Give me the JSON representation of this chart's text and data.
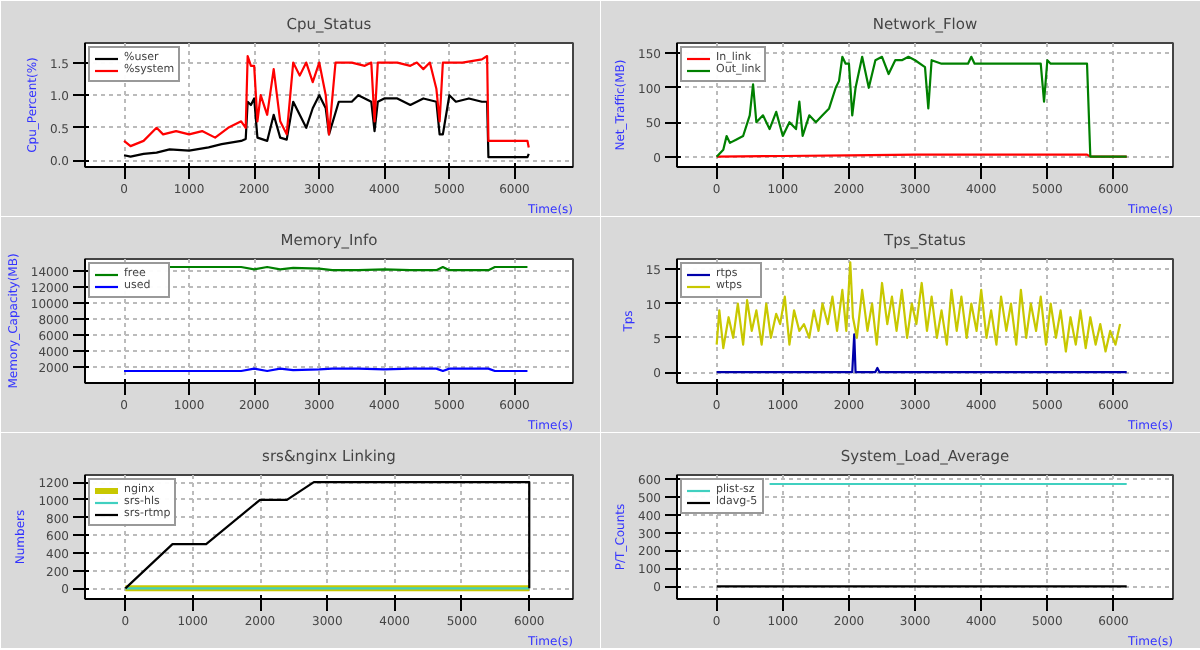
{
  "chart_data": [
    {
      "type": "line",
      "title": "Cpu_Status",
      "xlabel": "Time(s)",
      "ylabel": "Cpu_Percent(%)",
      "xlim": [
        -600,
        6900
      ],
      "ylim": [
        -0.1,
        1.8
      ],
      "xticks": [
        0,
        1000,
        2000,
        3000,
        4000,
        5000,
        6000
      ],
      "yticks": [
        {
          "value": 0,
          "label": "0.0"
        },
        0.5,
        {
          "value": 1,
          "label": "1.0"
        },
        1.5
      ],
      "grid": true,
      "legend": "top left",
      "series": [
        {
          "name": "%user",
          "color": "#000000",
          "x": [
            0,
            100,
            300,
            500,
            700,
            1000,
            1300,
            1500,
            1800,
            1870,
            1900,
            1950,
            2000,
            2050,
            2200,
            2300,
            2400,
            2500,
            2600,
            2700,
            2800,
            2900,
            3000,
            3100,
            3150,
            3300,
            3500,
            3600,
            3800,
            3850,
            3900,
            4000,
            4200,
            4400,
            4600,
            4800,
            4850,
            4900,
            5000,
            5100,
            5300,
            5500,
            5580,
            5600,
            6200,
            6220
          ],
          "values": [
            0.08,
            0.06,
            0.1,
            0.12,
            0.17,
            0.15,
            0.2,
            0.25,
            0.3,
            0.33,
            0.9,
            0.85,
            0.95,
            0.35,
            0.3,
            0.7,
            0.35,
            0.32,
            0.9,
            0.7,
            0.5,
            0.8,
            1.0,
            0.8,
            0.4,
            0.9,
            0.9,
            1.0,
            0.9,
            0.45,
            0.9,
            0.95,
            0.95,
            0.85,
            0.95,
            0.9,
            0.4,
            0.4,
            1.0,
            0.9,
            0.95,
            0.9,
            0.9,
            0.05,
            0.05,
            0.1
          ]
        },
        {
          "name": "%system",
          "color": "#ff0000",
          "x": [
            0,
            100,
            300,
            500,
            600,
            800,
            1000,
            1200,
            1400,
            1600,
            1800,
            1870,
            1900,
            1950,
            2000,
            2050,
            2100,
            2200,
            2300,
            2400,
            2500,
            2600,
            2700,
            2800,
            2900,
            3000,
            3100,
            3150,
            3250,
            3500,
            3700,
            3800,
            3850,
            3900,
            4200,
            4400,
            4500,
            4600,
            4700,
            4800,
            4850,
            4900,
            5200,
            5500,
            5580,
            5600,
            6200,
            6220
          ],
          "values": [
            0.3,
            0.22,
            0.3,
            0.5,
            0.4,
            0.45,
            0.4,
            0.45,
            0.35,
            0.5,
            0.6,
            0.5,
            1.6,
            1.45,
            1.45,
            0.6,
            1.0,
            0.7,
            1.4,
            0.6,
            0.4,
            1.5,
            1.3,
            1.5,
            1.2,
            1.5,
            1.0,
            0.4,
            1.5,
            1.5,
            1.45,
            1.5,
            0.6,
            1.5,
            1.5,
            1.45,
            1.5,
            1.4,
            1.5,
            1.1,
            0.6,
            1.5,
            1.5,
            1.55,
            1.6,
            0.3,
            0.3,
            0.2
          ]
        }
      ]
    },
    {
      "type": "line",
      "title": "Network_Flow",
      "xlabel": "Time(s)",
      "ylabel": "Net_Traffic(MB)",
      "xlim": [
        -600,
        6900
      ],
      "ylim": [
        -15,
        165
      ],
      "xticks": [
        0,
        1000,
        2000,
        3000,
        4000,
        5000,
        6000
      ],
      "yticks": [
        0,
        50,
        100,
        150
      ],
      "grid": true,
      "legend": "top left",
      "series": [
        {
          "name": "In_link",
          "color": "#ff0000",
          "x": [
            0,
            1000,
            2000,
            3000,
            4000,
            5000,
            5600,
            5650,
            6200
          ],
          "values": [
            0,
            1,
            2,
            3,
            3,
            3,
            3,
            0,
            0
          ]
        },
        {
          "name": "Out_link",
          "color": "#008000",
          "x": [
            0,
            100,
            150,
            200,
            300,
            400,
            500,
            550,
            600,
            700,
            800,
            900,
            1000,
            1100,
            1200,
            1250,
            1300,
            1400,
            1500,
            1600,
            1700,
            1800,
            1850,
            1900,
            1950,
            2000,
            2050,
            2100,
            2200,
            2300,
            2400,
            2500,
            2600,
            2700,
            2800,
            2900,
            3000,
            3150,
            3200,
            3250,
            3400,
            3600,
            3800,
            3850,
            3900,
            4200,
            4400,
            4700,
            4900,
            4950,
            5000,
            5050,
            5300,
            5600,
            5650,
            6200
          ],
          "values": [
            0,
            10,
            30,
            20,
            25,
            30,
            60,
            105,
            50,
            60,
            40,
            65,
            30,
            50,
            40,
            80,
            30,
            60,
            50,
            60,
            70,
            100,
            110,
            145,
            135,
            135,
            60,
            100,
            145,
            100,
            140,
            145,
            120,
            140,
            140,
            145,
            140,
            130,
            70,
            140,
            135,
            135,
            135,
            145,
            135,
            135,
            135,
            135,
            135,
            80,
            140,
            135,
            135,
            135,
            0,
            0
          ]
        }
      ]
    },
    {
      "type": "line",
      "title": "Memory_Info",
      "xlabel": "Time(s)",
      "ylabel": "Memory_Capacity(MB)",
      "xlim": [
        -600,
        6900
      ],
      "ylim": [
        0,
        15500
      ],
      "xticks": [
        0,
        1000,
        2000,
        3000,
        4000,
        5000,
        6000
      ],
      "yticks": [
        2000,
        4000,
        6000,
        8000,
        10000,
        12000,
        14000
      ],
      "grid": true,
      "legend": "top left",
      "series": [
        {
          "name": "free",
          "color": "#008000",
          "x": [
            700,
            1800,
            2000,
            2200,
            2400,
            2600,
            3000,
            3200,
            3600,
            4000,
            4400,
            4800,
            4900,
            5000,
            5600,
            5700,
            6200
          ],
          "values": [
            14500,
            14500,
            14200,
            14500,
            14200,
            14400,
            14300,
            14100,
            14100,
            14200,
            14100,
            14100,
            14500,
            14100,
            14100,
            14500,
            14500
          ]
        },
        {
          "name": "used",
          "color": "#0000ff",
          "x": [
            0,
            1800,
            2000,
            2200,
            2400,
            2600,
            3000,
            3200,
            3600,
            4000,
            4400,
            4800,
            4900,
            5000,
            5600,
            5700,
            6200
          ],
          "values": [
            1500,
            1500,
            1800,
            1500,
            1800,
            1600,
            1700,
            1800,
            1800,
            1700,
            1800,
            1800,
            1500,
            1800,
            1800,
            1500,
            1500
          ]
        }
      ]
    },
    {
      "type": "line",
      "title": "Tps_Status",
      "xlabel": "Time(s)",
      "ylabel": "Tps",
      "xlim": [
        -600,
        6900
      ],
      "ylim": [
        -1.6,
        16.5
      ],
      "xticks": [
        0,
        1000,
        2000,
        3000,
        4000,
        5000,
        6000
      ],
      "yticks": [
        0,
        5,
        10,
        15
      ],
      "grid": true,
      "legend": "top left",
      "series": [
        {
          "name": "rtps",
          "color": "#0000aa",
          "x": [
            0,
            2050,
            2080,
            2100,
            2130,
            2400,
            2430,
            2460,
            6200
          ],
          "values": [
            0,
            0,
            5.5,
            0,
            0,
            0,
            0.6,
            0,
            0
          ]
        },
        {
          "name": "wtps",
          "color": "#c8c800",
          "x": [
            0,
            40,
            100,
            180,
            250,
            320,
            400,
            460,
            530,
            600,
            680,
            750,
            820,
            900,
            960,
            1030,
            1100,
            1170,
            1250,
            1320,
            1400,
            1470,
            1540,
            1600,
            1680,
            1750,
            1820,
            1900,
            1960,
            2020,
            2060,
            2120,
            2200,
            2280,
            2350,
            2420,
            2500,
            2580,
            2650,
            2720,
            2800,
            2880,
            2950,
            3020,
            3100,
            3180,
            3250,
            3330,
            3400,
            3480,
            3550,
            3630,
            3700,
            3780,
            3850,
            3930,
            4000,
            4080,
            4150,
            4230,
            4300,
            4380,
            4450,
            4530,
            4600,
            4680,
            4750,
            4830,
            4900,
            4980,
            5050,
            5130,
            5200,
            5280,
            5350,
            5430,
            5500,
            5580,
            5650,
            5730,
            5800,
            5880,
            5950,
            6030,
            6100
          ],
          "values": [
            4,
            9,
            3.5,
            8,
            5,
            10,
            4,
            10.5,
            6,
            9,
            4,
            10,
            5,
            8.5,
            7,
            11,
            4,
            9,
            6,
            7,
            5,
            9,
            6,
            10,
            7,
            11,
            6,
            12,
            6,
            16,
            8,
            5,
            12,
            6,
            10,
            4,
            13,
            7,
            11,
            6,
            12,
            5,
            10,
            7,
            13,
            6,
            11,
            5,
            9,
            4,
            12,
            6,
            11,
            5,
            10,
            6,
            12,
            5,
            9,
            4,
            11,
            6,
            10,
            4,
            12,
            5,
            10,
            6,
            11,
            4,
            10,
            5,
            9,
            3,
            8,
            4,
            9,
            3.5,
            8,
            4,
            7,
            3,
            6,
            4,
            7
          ]
        }
      ]
    },
    {
      "type": "line",
      "title": "srs&nginx Linking",
      "xlabel": "Time(s)",
      "ylabel": "Numbers",
      "xlim": [
        -600,
        6650
      ],
      "ylim": [
        -120,
        1280
      ],
      "xticks": [
        0,
        1000,
        2000,
        3000,
        4000,
        5000,
        6000
      ],
      "yticks": [
        0,
        200,
        400,
        600,
        800,
        1000,
        1200
      ],
      "grid": true,
      "legend": "top left",
      "series": [
        {
          "name": "nginx",
          "color": "#c8c800",
          "x": [
            0,
            6000
          ],
          "values": [
            0,
            0
          ]
        },
        {
          "name": "srs-hls",
          "color": "#40d0c0",
          "x": [
            0,
            6000
          ],
          "values": [
            0,
            0
          ]
        },
        {
          "name": "srs-rtmp",
          "color": "#000000",
          "x": [
            0,
            700,
            1200,
            2000,
            2400,
            2800,
            6000,
            6000
          ],
          "values": [
            0,
            500,
            500,
            1000,
            1000,
            1200,
            1200,
            0
          ]
        }
      ]
    },
    {
      "type": "line",
      "title": "System_Load_Average",
      "xlabel": "Time(s)",
      "ylabel": "P/T_Counts",
      "xlim": [
        -600,
        6900
      ],
      "ylim": [
        -70,
        620
      ],
      "xticks": [
        0,
        1000,
        2000,
        3000,
        4000,
        5000,
        6000
      ],
      "yticks": [
        0,
        100,
        200,
        300,
        400,
        500,
        600
      ],
      "grid": true,
      "legend": "top left",
      "series": [
        {
          "name": "plist-sz",
          "color": "#40d0c0",
          "x": [
            800,
            2000,
            4000,
            6200
          ],
          "values": [
            570,
            570,
            570,
            570
          ]
        },
        {
          "name": "ldavg-5",
          "color": "#000000",
          "x": [
            0,
            6200
          ],
          "values": [
            0,
            0
          ]
        }
      ]
    }
  ]
}
